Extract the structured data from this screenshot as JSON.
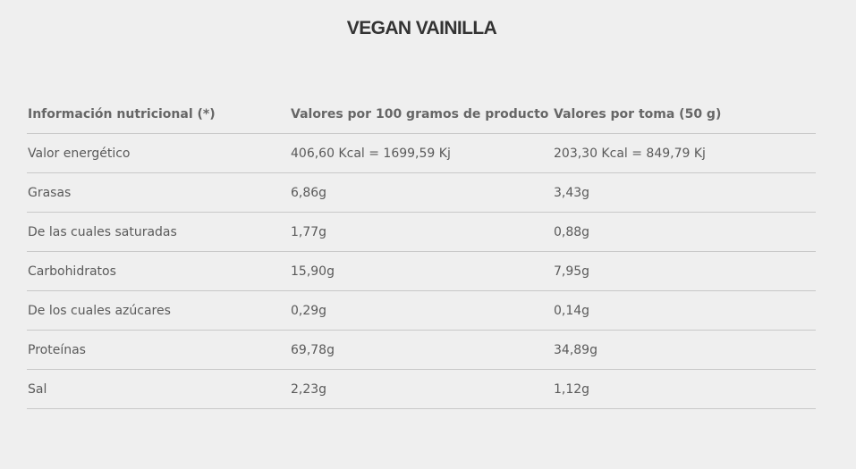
{
  "title": "VEGAN VAINILLA",
  "table": {
    "headers": [
      "Información nutricional (*)",
      "Valores por 100 gramos de producto",
      "Valores por toma (50 g)"
    ],
    "rows": [
      [
        "Valor energético",
        "406,60 Kcal = 1699,59 Kj",
        "203,30 Kcal = 849,79 Kj"
      ],
      [
        "Grasas",
        "6,86g",
        "3,43g"
      ],
      [
        "De las cuales saturadas",
        "1,77g",
        "0,88g"
      ],
      [
        "Carbohidratos",
        "15,90g",
        "7,95g"
      ],
      [
        "De los cuales azúcares",
        "0,29g",
        "0,14g"
      ],
      [
        "Proteínas",
        "69,78g",
        "34,89g"
      ],
      [
        "Sal",
        "2,23g",
        "1,12g"
      ]
    ]
  },
  "colors": {
    "background": "#efefef",
    "title": "#333333",
    "text": "#5a5a5a",
    "divider": "#c8c8c8"
  }
}
